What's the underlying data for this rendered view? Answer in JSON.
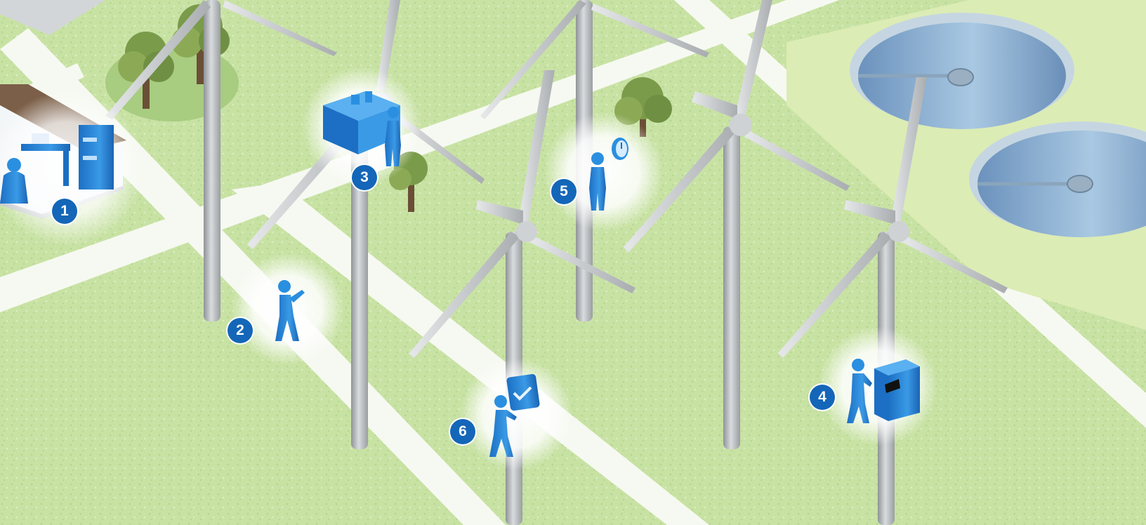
{
  "scene": {
    "colors": {
      "grass": "#c8e2a4",
      "grass_dark": "#b3d68a",
      "road": "#f6f9f1",
      "tower": "#b9bcbe",
      "blade": "#d6d8da",
      "figure": "#2a8fe0",
      "marker": "#1466b8",
      "tank_water": "#7fa9cf",
      "tank_rim": "#c5d6e2",
      "tank_pad": "#dcecb5"
    },
    "icons": [
      "office-desk-icon",
      "technician-with-wrench-icon",
      "control-unit-operator-icon",
      "cabinet-operator-icon",
      "operator-with-clock-icon",
      "worker-with-checklist-icon"
    ]
  },
  "markers": [
    {
      "id": "1",
      "label": "1"
    },
    {
      "id": "2",
      "label": "2"
    },
    {
      "id": "3",
      "label": "3"
    },
    {
      "id": "4",
      "label": "4"
    },
    {
      "id": "5",
      "label": "5"
    },
    {
      "id": "6",
      "label": "6"
    }
  ]
}
